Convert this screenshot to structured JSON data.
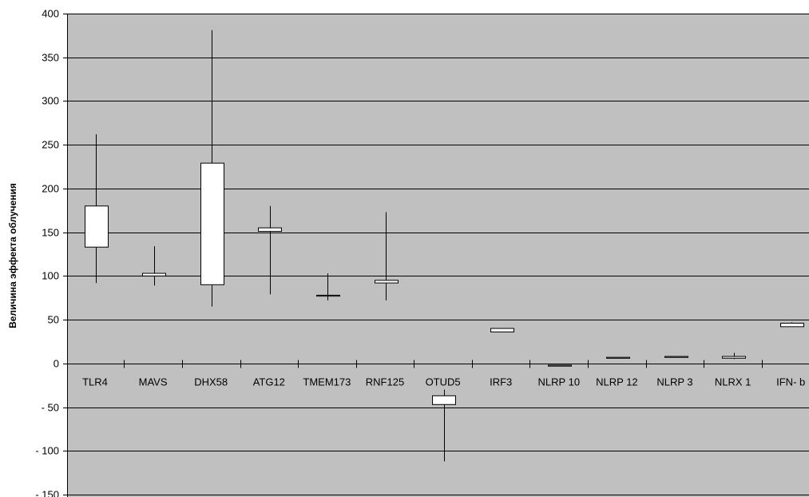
{
  "chart_data": {
    "type": "box",
    "title": "",
    "xlabel": "",
    "ylabel": "Величина эффекта облучения",
    "ylim": [
      -150,
      400
    ],
    "yticks": [
      {
        "value": 400,
        "label": "400"
      },
      {
        "value": 350,
        "label": "350"
      },
      {
        "value": 300,
        "label": "300"
      },
      {
        "value": 250,
        "label": "250"
      },
      {
        "value": 200,
        "label": "200"
      },
      {
        "value": 150,
        "label": "150"
      },
      {
        "value": 100,
        "label": "100"
      },
      {
        "value": 50,
        "label": "50"
      },
      {
        "value": 0,
        "label": "0"
      },
      {
        "value": -50,
        "label": "- 50"
      },
      {
        "value": -100,
        "label": "- 100"
      },
      {
        "value": -150,
        "label": "- 150"
      }
    ],
    "grid": true,
    "categories": [
      "TLR4",
      "MAVS",
      "DHX58",
      "ATG12",
      "TMEM173",
      "RNF125",
      "OTUD5",
      "IRF3",
      "NLRP 10",
      "NLRP 12",
      "NLRP 3",
      "NLRX 1",
      "IFN- b"
    ],
    "boxes": [
      {
        "category": "TLR4",
        "min": 92,
        "q1": 133,
        "q3": 180,
        "max": 262
      },
      {
        "category": "MAVS",
        "min": 89,
        "q1": 100,
        "q3": 103,
        "max": 134
      },
      {
        "category": "DHX58",
        "min": 65,
        "q1": 90,
        "q3": 229,
        "max": 381
      },
      {
        "category": "ATG12",
        "min": 79,
        "q1": 151,
        "q3": 155,
        "max": 180
      },
      {
        "category": "TMEM173",
        "min": 72,
        "q1": 77,
        "q3": 78,
        "max": 103
      },
      {
        "category": "RNF125",
        "min": 72,
        "q1": 92,
        "q3": 95,
        "max": 173
      },
      {
        "category": "OTUD5",
        "min": -112,
        "q1": -47,
        "q3": -37,
        "max": -30
      },
      {
        "category": "IRF3",
        "min": 36,
        "q1": 36,
        "q3": 40,
        "max": 40
      },
      {
        "category": "NLRP 10",
        "min": -3,
        "q1": -3,
        "q3": -2,
        "max": -2
      },
      {
        "category": "NLRP 12",
        "min": 6,
        "q1": 6,
        "q3": 7,
        "max": 7
      },
      {
        "category": "NLRP 3",
        "min": 7,
        "q1": 7,
        "q3": 8,
        "max": 8
      },
      {
        "category": "NLRX 1",
        "min": 5,
        "q1": 6,
        "q3": 8,
        "max": 12
      },
      {
        "category": "IFN- b",
        "min": 42,
        "q1": 42,
        "q3": 46,
        "max": 47
      }
    ]
  },
  "colors": {
    "plot_background": "#c0c0c0",
    "box_fill": "#ffffff",
    "line": "#000000"
  }
}
